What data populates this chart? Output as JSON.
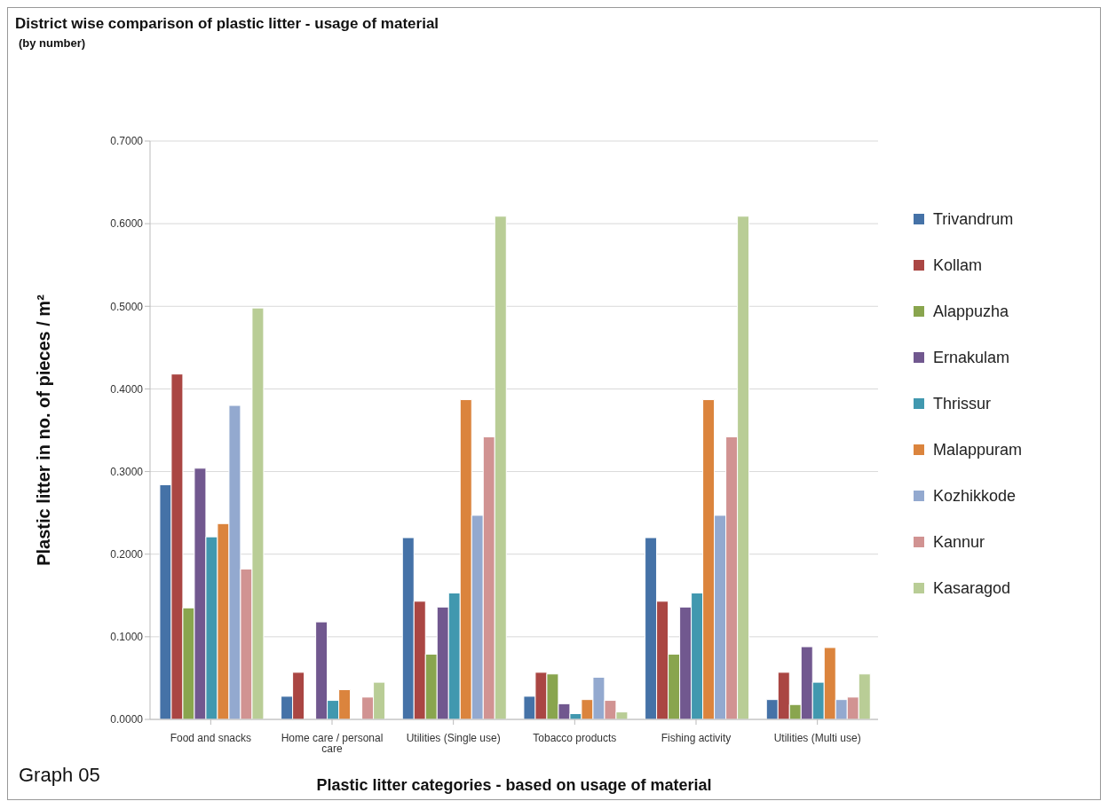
{
  "chart_data": {
    "type": "bar",
    "title": "District wise comparison of plastic litter - usage of material",
    "subtitle": "(by number)",
    "xlabel": "Plastic litter categories - based on usage of material",
    "ylabel": "Plastic litter in no. of pieces / m²",
    "annotations": [
      "Graph 05"
    ],
    "categories": [
      "Food and snacks",
      "Home care / personal care",
      "Utilities (Single use)",
      "Tobacco products",
      "Fishing activity",
      "Utilities (Multi use)"
    ],
    "series": [
      {
        "name": "Trivandrum",
        "color": "#4572a7",
        "values": [
          0.284,
          0.028,
          0.22,
          0.028,
          0.22,
          0.024
        ]
      },
      {
        "name": "Kollam",
        "color": "#aa4643",
        "values": [
          0.418,
          0.057,
          0.143,
          0.057,
          0.143,
          0.057
        ]
      },
      {
        "name": "Alappuzha",
        "color": "#89a54e",
        "values": [
          0.135,
          0,
          0.079,
          0.055,
          0.079,
          0.018
        ]
      },
      {
        "name": "Ernakulam",
        "color": "#71588f",
        "values": [
          0.304,
          0.118,
          0.136,
          0.019,
          0.136,
          0.088
        ]
      },
      {
        "name": "Thrissur",
        "color": "#4198af",
        "values": [
          0.221,
          0.023,
          0.153,
          0.007,
          0.153,
          0.045
        ]
      },
      {
        "name": "Malappuram",
        "color": "#db843d",
        "values": [
          0.237,
          0.036,
          0.387,
          0.024,
          0.387,
          0.087
        ]
      },
      {
        "name": "Kozhikkode",
        "color": "#93a9cf",
        "values": [
          0.38,
          0,
          0.247,
          0.051,
          0.247,
          0.024
        ]
      },
      {
        "name": "Kannur",
        "color": "#d19392",
        "values": [
          0.182,
          0.027,
          0.342,
          0.023,
          0.342,
          0.027
        ]
      },
      {
        "name": "Kasaragod",
        "color": "#b9cd96",
        "values": [
          0.498,
          0.045,
          0.609,
          0.009,
          0.609,
          0.055
        ]
      }
    ],
    "ylim": [
      0,
      0.7
    ],
    "yticks": [
      {
        "value": 0,
        "label": "0.0000"
      },
      {
        "value": 0.1,
        "label": "0.1000"
      },
      {
        "value": 0.2,
        "label": "0.2000"
      },
      {
        "value": 0.3,
        "label": "0.3000"
      },
      {
        "value": 0.4,
        "label": "0.4000"
      },
      {
        "value": 0.5,
        "label": "0.5000"
      },
      {
        "value": 0.6,
        "label": "0.6000"
      },
      {
        "value": 0.7,
        "label": "0.7000"
      }
    ],
    "grid": "y",
    "legend": "right"
  }
}
